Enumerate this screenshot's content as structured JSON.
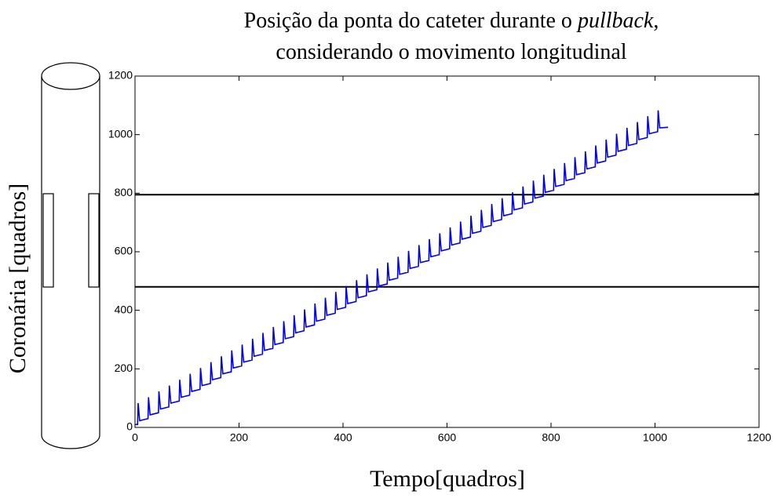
{
  "chart_data": {
    "type": "line",
    "title_start": "Posição da ponta do cateter durante o",
    "title_emphasis": "pullback",
    "title_comma": ",",
    "title_line2": "considerando o movimento longitudinal",
    "xlabel": "Tempo[quadros]",
    "ylabel": "Coronária [quadros]",
    "xlim": [
      0,
      1200
    ],
    "ylim": [
      0,
      1200
    ],
    "xticks": [
      0,
      200,
      400,
      600,
      800,
      1000,
      1200
    ],
    "yticks": [
      0,
      200,
      400,
      600,
      800,
      1000,
      1200
    ],
    "hlines": [
      795,
      480
    ],
    "hline_color": "#000000",
    "x": [
      0,
      5,
      6,
      9,
      25,
      26,
      29,
      45,
      46,
      49,
      65,
      66,
      69,
      85,
      86,
      89,
      105,
      106,
      109,
      125,
      126,
      129,
      145,
      146,
      149,
      165,
      166,
      169,
      185,
      186,
      189,
      205,
      206,
      209,
      225,
      226,
      229,
      245,
      246,
      249,
      265,
      266,
      269,
      285,
      286,
      289,
      305,
      306,
      309,
      325,
      326,
      329,
      345,
      346,
      349,
      365,
      366,
      369,
      385,
      386,
      389,
      405,
      406,
      409,
      425,
      426,
      429,
      445,
      446,
      449,
      465,
      466,
      469,
      485,
      486,
      489,
      505,
      506,
      509,
      525,
      526,
      529,
      545,
      546,
      549,
      565,
      566,
      569,
      585,
      586,
      589,
      605,
      606,
      609,
      625,
      626,
      629,
      645,
      646,
      649,
      665,
      666,
      669,
      685,
      686,
      689,
      705,
      706,
      709,
      725,
      726,
      729,
      745,
      746,
      749,
      765,
      766,
      769,
      785,
      786,
      789,
      805,
      806,
      809,
      825,
      826,
      829,
      845,
      846,
      849,
      865,
      866,
      869,
      885,
      886,
      889,
      905,
      906,
      909,
      925,
      926,
      929,
      945,
      946,
      949,
      965,
      966,
      969,
      985,
      986,
      989,
      1005,
      1006,
      1009,
      1025
    ],
    "series": [
      {
        "color": "#0000ee",
        "values": [
          10,
          10,
          83,
          23,
          30,
          103,
          43,
          50,
          123,
          63,
          70,
          143,
          83,
          90,
          163,
          103,
          110,
          183,
          123,
          130,
          203,
          143,
          150,
          223,
          163,
          170,
          243,
          183,
          190,
          263,
          203,
          210,
          283,
          223,
          230,
          303,
          243,
          250,
          323,
          263,
          270,
          343,
          283,
          290,
          363,
          303,
          310,
          383,
          323,
          330,
          403,
          343,
          350,
          423,
          363,
          370,
          443,
          383,
          390,
          463,
          403,
          410,
          483,
          423,
          430,
          503,
          443,
          450,
          523,
          463,
          470,
          543,
          483,
          490,
          563,
          503,
          510,
          583,
          523,
          530,
          603,
          543,
          550,
          623,
          563,
          570,
          643,
          583,
          590,
          663,
          603,
          610,
          683,
          623,
          630,
          703,
          643,
          650,
          723,
          663,
          670,
          743,
          683,
          690,
          763,
          703,
          710,
          783,
          723,
          730,
          803,
          743,
          750,
          823,
          763,
          770,
          843,
          783,
          790,
          863,
          803,
          810,
          883,
          823,
          830,
          903,
          843,
          850,
          923,
          863,
          870,
          943,
          883,
          890,
          963,
          903,
          910,
          983,
          923,
          930,
          1003,
          943,
          950,
          1023,
          963,
          970,
          1043,
          983,
          990,
          1063,
          1003,
          1010,
          1083,
          1023,
          1025
        ]
      }
    ]
  }
}
